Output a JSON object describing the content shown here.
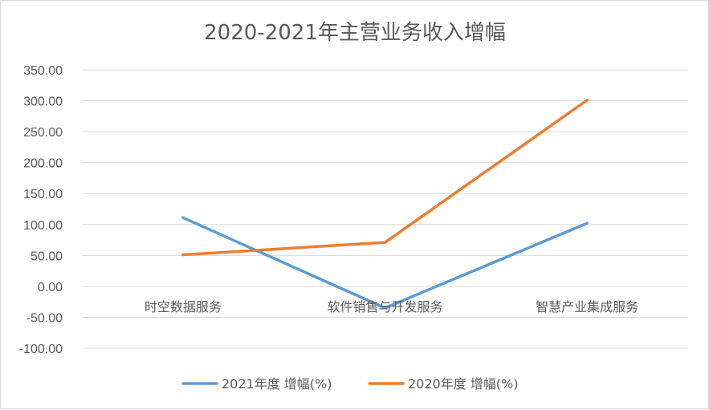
{
  "chart_data": {
    "type": "line",
    "title": "2020-2021年主营业务收入增幅",
    "categories": [
      "时空数据服务",
      "软件销售与开发服务",
      "智慧产业集成服务"
    ],
    "series": [
      {
        "name": "2021年度 增幅(%)",
        "values": [
          111,
          -35,
          102
        ],
        "color": "#5b9bd5"
      },
      {
        "name": "2020年度 增幅(%)",
        "values": [
          51,
          71,
          301
        ],
        "color": "#ed7d31"
      }
    ],
    "ylim": [
      -100,
      350
    ],
    "yticks": [
      "350.00",
      "300.00",
      "250.00",
      "200.00",
      "150.00",
      "100.00",
      "50.00",
      "0.00",
      "-50.00",
      "-100.00"
    ],
    "ytick_values": [
      350,
      300,
      250,
      200,
      150,
      100,
      50,
      0,
      -50,
      -100
    ],
    "grid": true,
    "legend_position": "bottom"
  }
}
